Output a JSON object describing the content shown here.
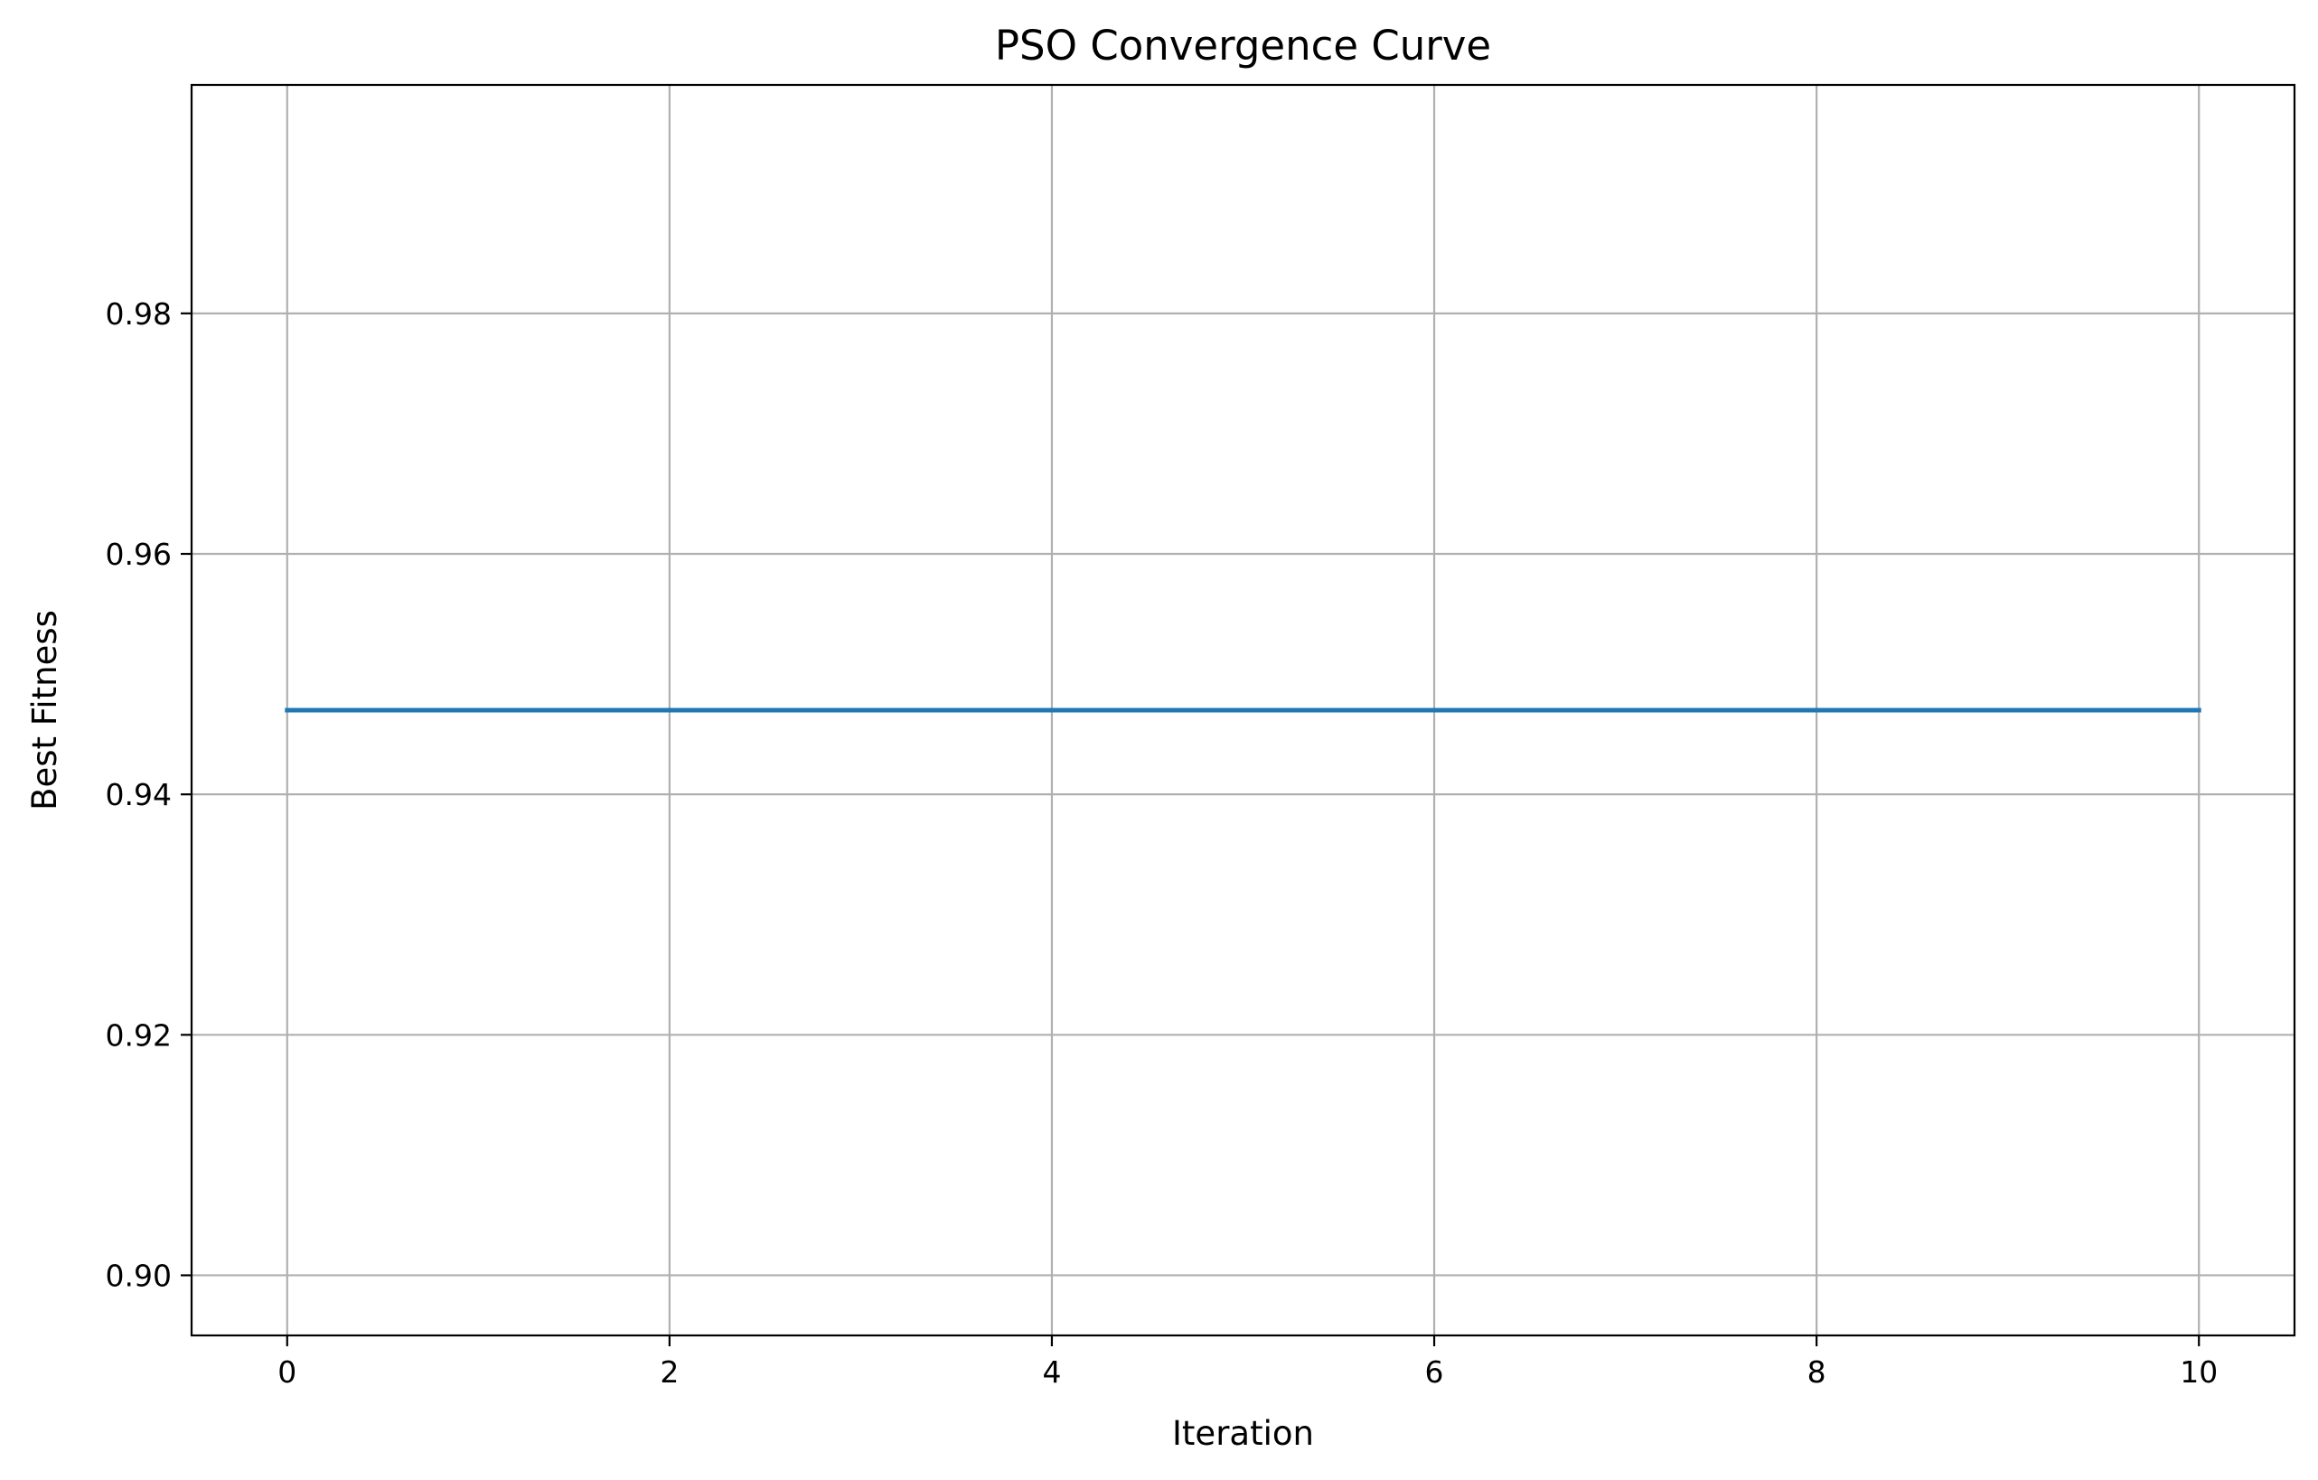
{
  "chart_data": {
    "type": "line",
    "title": "PSO Convergence Curve",
    "xlabel": "Iteration",
    "ylabel": "Best Fitness",
    "xlim": [
      -0.5,
      10.5
    ],
    "ylim": [
      0.895,
      0.999
    ],
    "x_ticks": [
      0,
      2,
      4,
      6,
      8,
      10
    ],
    "x_tick_labels": [
      "0",
      "2",
      "4",
      "6",
      "8",
      "10"
    ],
    "y_ticks": [
      0.9,
      0.92,
      0.94,
      0.96,
      0.98
    ],
    "y_tick_labels": [
      "0.90",
      "0.92",
      "0.94",
      "0.96",
      "0.98"
    ],
    "grid": true,
    "series": [
      {
        "color": "#1f77b4",
        "x": [
          0,
          1,
          2,
          3,
          4,
          5,
          6,
          7,
          8,
          9,
          10
        ],
        "values": [
          0.947,
          0.947,
          0.947,
          0.947,
          0.947,
          0.947,
          0.947,
          0.947,
          0.947,
          0.947,
          0.947
        ]
      }
    ]
  }
}
